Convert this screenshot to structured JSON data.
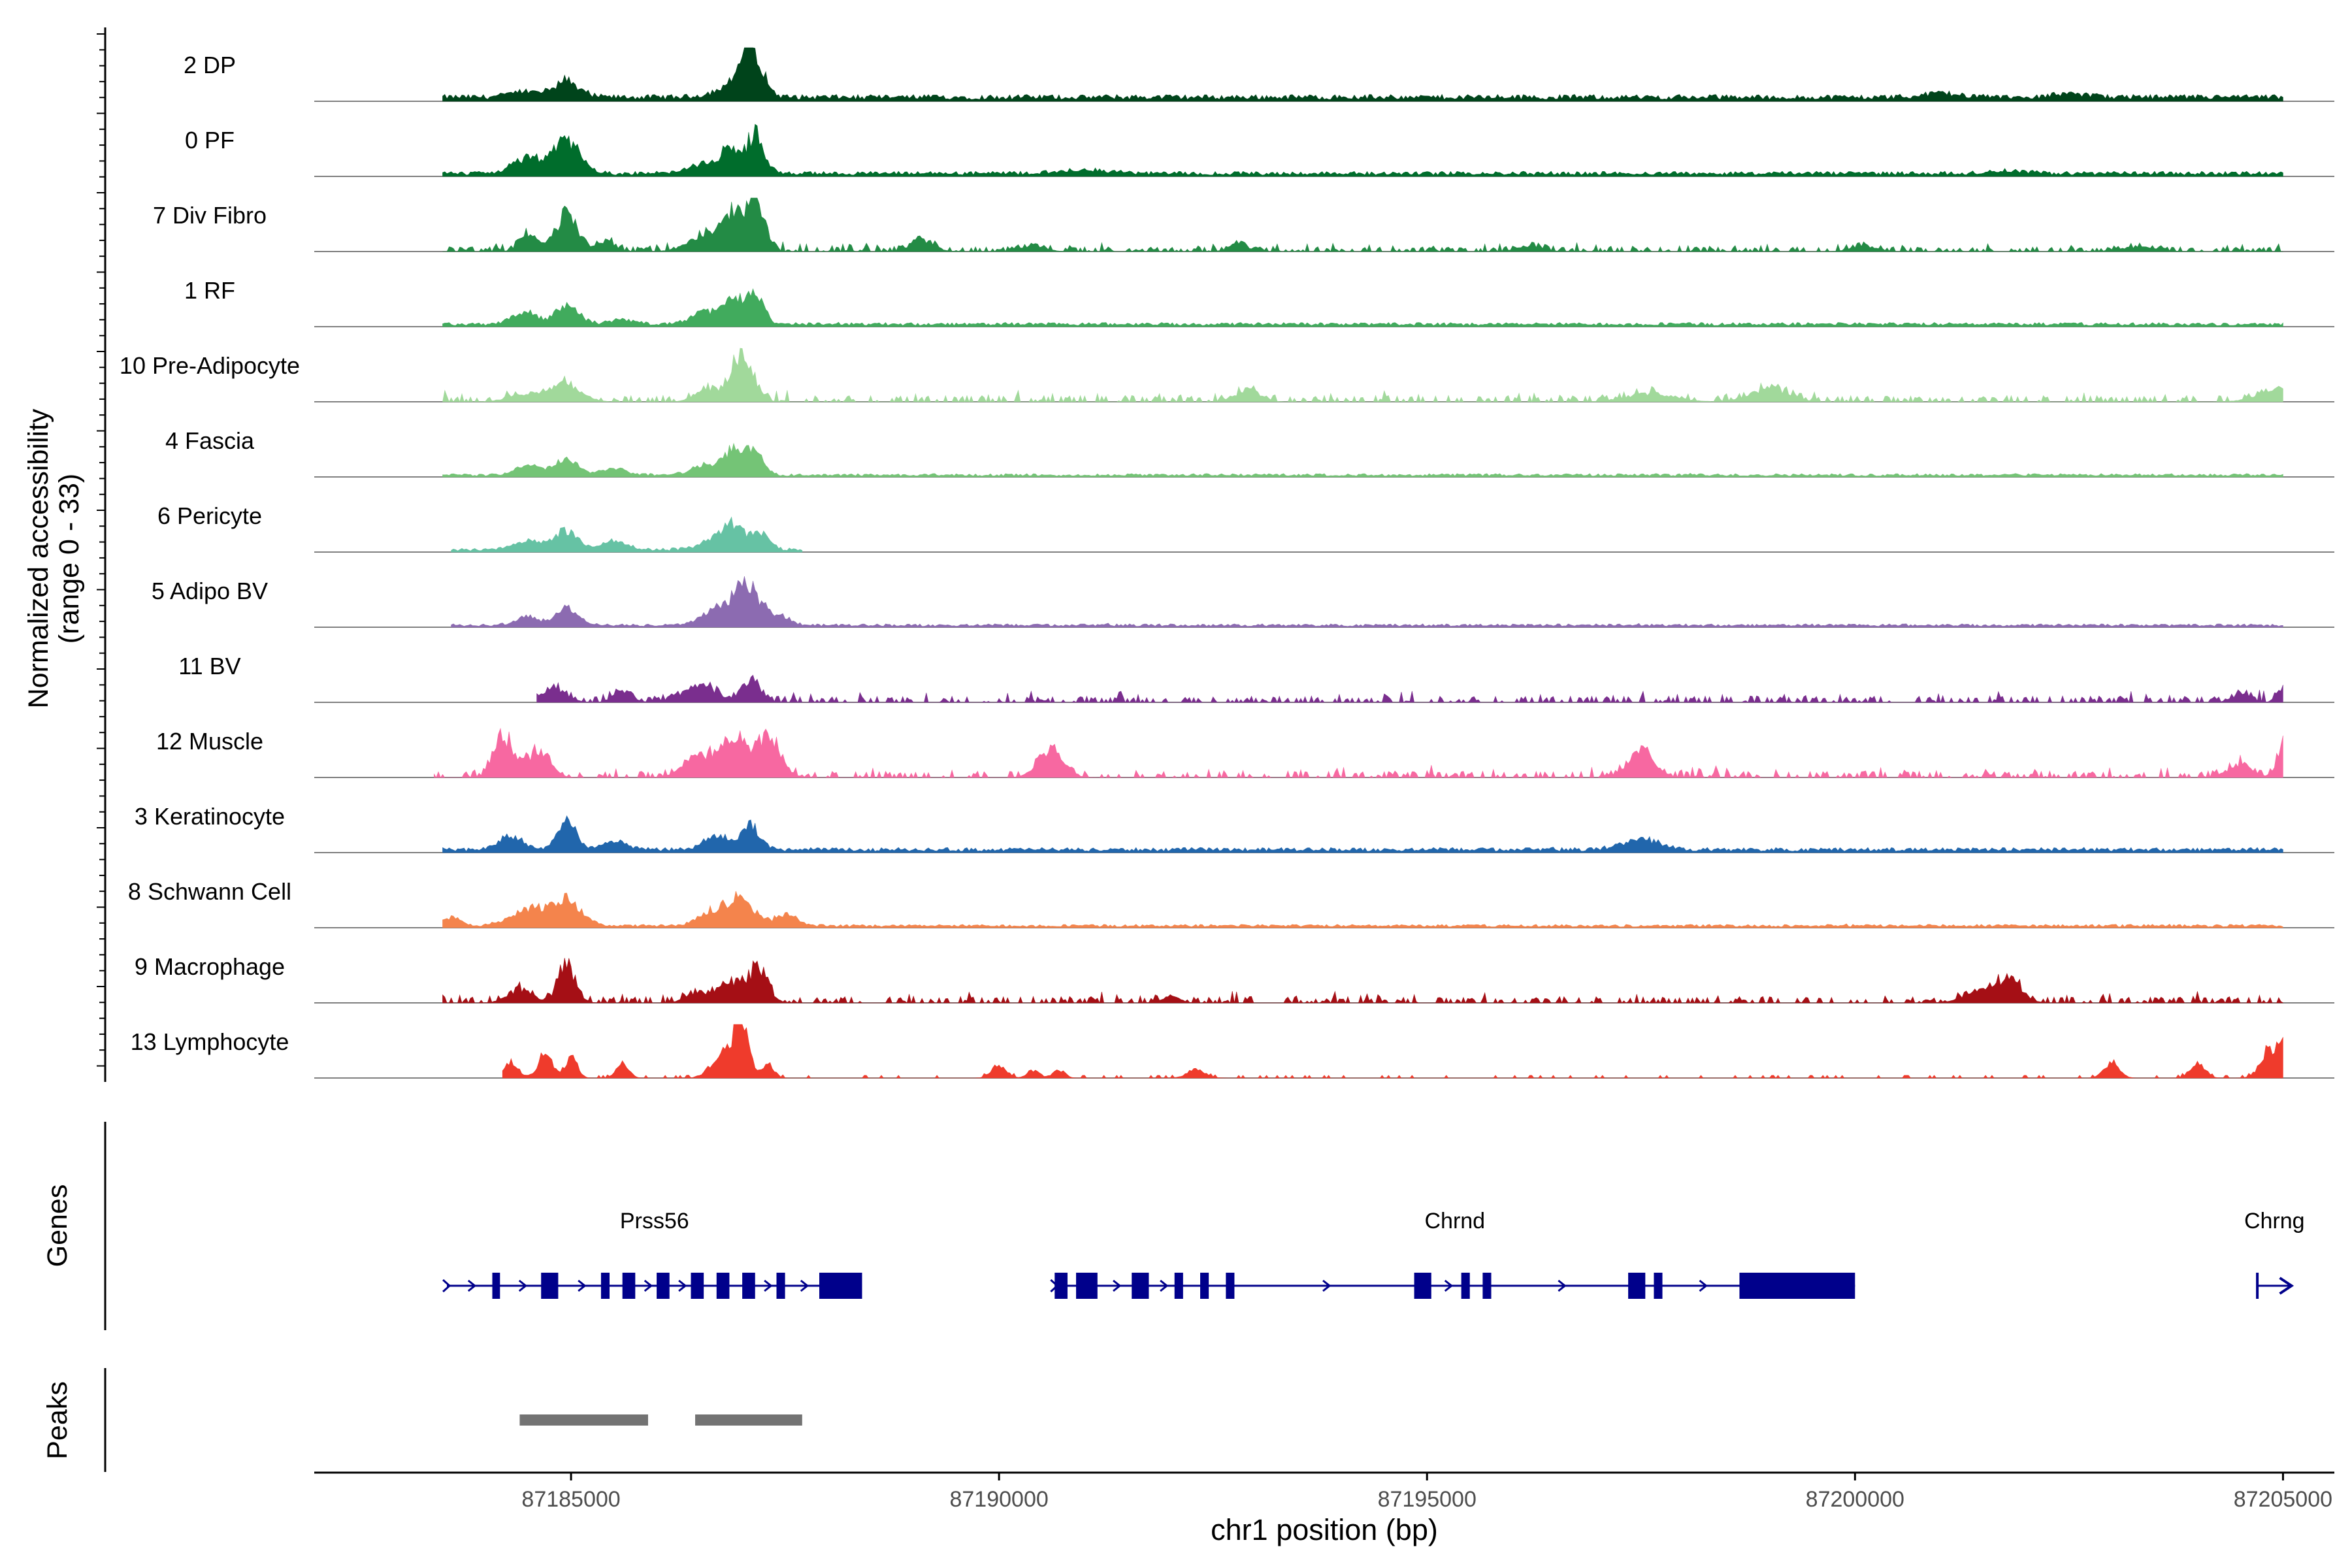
{
  "chart_data": {
    "type": "area",
    "genomic_region": {
      "chromosome": "chr1",
      "start": 87182000,
      "end": 87205600
    },
    "coverage_panel": {
      "ylabel": "Normalized accessibility",
      "ylabel2": "(range 0 - 33)",
      "ylim": [
        0,
        33
      ],
      "tracks": [
        {
          "name": "2 DP",
          "color": "#00441b",
          "start": 87183500,
          "end": 87205000,
          "base": 0.08,
          "noise": 0.2,
          "peaks": [
            [
              87184450,
              0.1,
              250
            ],
            [
              87184950,
              0.3,
              220
            ],
            [
              87186800,
              0.15,
              250
            ],
            [
              87187100,
              0.9,
              180
            ],
            [
              87201000,
              0.07,
              300
            ],
            [
              87202500,
              0.06,
              300
            ]
          ]
        },
        {
          "name": "0 PF",
          "color": "#006d2c",
          "start": 87183500,
          "end": 87205000,
          "base": 0.06,
          "noise": 0.2,
          "peaks": [
            [
              87184500,
              0.28,
              250
            ],
            [
              87184950,
              0.6,
              220
            ],
            [
              87186600,
              0.18,
              300
            ],
            [
              87186850,
              0.42,
              120
            ],
            [
              87187150,
              0.75,
              150
            ],
            [
              87191000,
              0.06,
              400
            ],
            [
              87201800,
              0.05,
              300
            ]
          ]
        },
        {
          "name": "7 Div Fibro",
          "color": "#238b45",
          "start": 87183500,
          "end": 87205000,
          "base": 0.03,
          "noise": 0.5,
          "segments": true,
          "peaks": [
            [
              87184500,
              0.3,
              150
            ],
            [
              87184950,
              0.7,
              180
            ],
            [
              87185400,
              0.2,
              150
            ],
            [
              87186600,
              0.3,
              300
            ],
            [
              87186900,
              0.6,
              150
            ],
            [
              87187150,
              0.95,
              150
            ],
            [
              87189100,
              0.2,
              200
            ],
            [
              87190400,
              0.1,
              200
            ],
            [
              87192800,
              0.14,
              150
            ],
            [
              87196200,
              0.1,
              200
            ],
            [
              87200100,
              0.1,
              200
            ],
            [
              87203300,
              0.08,
              300
            ]
          ]
        },
        {
          "name": "1 RF",
          "color": "#41ab5d",
          "start": 87183500,
          "end": 87205000,
          "base": 0.05,
          "noise": 0.3,
          "peaks": [
            [
              87184450,
              0.22,
              200
            ],
            [
              87184950,
              0.35,
              200
            ],
            [
              87185600,
              0.1,
              200
            ],
            [
              87186600,
              0.25,
              250
            ],
            [
              87186900,
              0.45,
              140
            ],
            [
              87187150,
              0.55,
              140
            ]
          ]
        },
        {
          "name": "10 Pre-Adipocyte",
          "color": "#a1d99b",
          "start": 87183500,
          "end": 87205000,
          "base": 0.04,
          "noise": 0.9,
          "segments": true,
          "peaks": [
            [
              87184500,
              0.15,
              300
            ],
            [
              87184950,
              0.3,
              250
            ],
            [
              87186600,
              0.25,
              200
            ],
            [
              87187000,
              0.95,
              180
            ],
            [
              87192900,
              0.22,
              200
            ],
            [
              87197600,
              0.15,
              400
            ],
            [
              87199000,
              0.25,
              300
            ],
            [
              87204900,
              0.22,
              300
            ]
          ]
        },
        {
          "name": "4 Fascia",
          "color": "#74c476",
          "start": 87183500,
          "end": 87205000,
          "base": 0.04,
          "noise": 0.3,
          "peaks": [
            [
              87184500,
              0.18,
              200
            ],
            [
              87184950,
              0.3,
              200
            ],
            [
              87185500,
              0.12,
              200
            ],
            [
              87186600,
              0.2,
              250
            ],
            [
              87186900,
              0.45,
              140
            ],
            [
              87187150,
              0.5,
              140
            ]
          ]
        },
        {
          "name": "6 Pericyte",
          "color": "#66c2a4",
          "start": 87183600,
          "end": 87187700,
          "base": 0.05,
          "noise": 0.3,
          "peaks": [
            [
              87184500,
              0.15,
              250
            ],
            [
              87184950,
              0.35,
              180
            ],
            [
              87185500,
              0.15,
              200
            ],
            [
              87186700,
              0.2,
              250
            ],
            [
              87186900,
              0.35,
              150
            ],
            [
              87187200,
              0.35,
              150
            ]
          ]
        },
        {
          "name": "5 Adipo BV",
          "color": "#8c6bb1",
          "start": 87183600,
          "end": 87205000,
          "base": 0.04,
          "noise": 0.4,
          "peaks": [
            [
              87184500,
              0.15,
              200
            ],
            [
              87184950,
              0.3,
              180
            ],
            [
              87186700,
              0.3,
              250
            ],
            [
              87187050,
              0.7,
              200
            ],
            [
              87187400,
              0.2,
              200
            ]
          ]
        },
        {
          "name": "11 BV",
          "color": "#7a2e8e",
          "start": 87184600,
          "end": 87205000,
          "base": 0.04,
          "noise": 0.8,
          "segments": true,
          "peaks": [
            [
              87184800,
              0.25,
              200
            ],
            [
              87185600,
              0.22,
              150
            ],
            [
              87186500,
              0.3,
              300
            ],
            [
              87187100,
              0.4,
              150
            ],
            [
              87204500,
              0.15,
              150
            ],
            [
              87205000,
              0.25,
              100
            ]
          ]
        },
        {
          "name": "12 Muscle",
          "color": "#f768a1",
          "start": 87183400,
          "end": 87205000,
          "base": 0.04,
          "noise": 1.0,
          "segments": true,
          "peaks": [
            [
              87184200,
              0.8,
              150
            ],
            [
              87184600,
              0.45,
              200
            ],
            [
              87186500,
              0.4,
              250
            ],
            [
              87186900,
              0.7,
              200
            ],
            [
              87187300,
              0.8,
              200
            ],
            [
              87190600,
              0.55,
              200
            ],
            [
              87197500,
              0.55,
              200
            ],
            [
              87204500,
              0.25,
              200
            ],
            [
              87205000,
              0.6,
              100
            ]
          ]
        },
        {
          "name": "3 Keratinocyte",
          "color": "#2166ac",
          "start": 87183500,
          "end": 87205000,
          "base": 0.06,
          "noise": 0.3,
          "peaks": [
            [
              87184300,
              0.25,
              200
            ],
            [
              87184950,
              0.55,
              150
            ],
            [
              87185500,
              0.15,
              200
            ],
            [
              87186700,
              0.25,
              200
            ],
            [
              87187100,
              0.45,
              150
            ],
            [
              87197500,
              0.2,
              300
            ]
          ]
        },
        {
          "name": "8 Schwann Cell",
          "color": "#f4844c",
          "start": 87183500,
          "end": 87205000,
          "base": 0.04,
          "noise": 0.7,
          "peaks": [
            [
              87183600,
              0.15,
              150
            ],
            [
              87184500,
              0.3,
              300
            ],
            [
              87184950,
              0.45,
              250
            ],
            [
              87186700,
              0.3,
              250
            ],
            [
              87187000,
              0.45,
              200
            ],
            [
              87187500,
              0.2,
              200
            ]
          ]
        },
        {
          "name": "9 Macrophage",
          "color": "#a50f15",
          "start": 87183500,
          "end": 87205000,
          "base": 0.04,
          "noise": 0.8,
          "segments": true,
          "peaks": [
            [
              87184400,
              0.25,
              200
            ],
            [
              87184950,
              0.65,
              150
            ],
            [
              87186500,
              0.2,
              200
            ],
            [
              87186900,
              0.4,
              200
            ],
            [
              87187200,
              0.6,
              150
            ],
            [
              87192000,
              0.12,
              150
            ],
            [
              87201500,
              0.2,
              300
            ],
            [
              87201800,
              0.4,
              200
            ]
          ]
        },
        {
          "name": "13 Lymphocyte",
          "color": "#ef3b2c",
          "start": 87184200,
          "end": 87205000,
          "base": 0.0,
          "noise": 0.0,
          "segments": true,
          "peaks": [
            [
              87184300,
              0.3,
              120
            ],
            [
              87184700,
              0.45,
              120
            ],
            [
              87185000,
              0.4,
              100
            ],
            [
              87185600,
              0.3,
              100
            ],
            [
              87186800,
              0.5,
              200
            ],
            [
              87187000,
              0.95,
              120
            ],
            [
              87187300,
              0.25,
              100
            ],
            [
              87190000,
              0.25,
              120
            ],
            [
              87190400,
              0.15,
              100
            ],
            [
              87190700,
              0.15,
              100
            ],
            [
              87192300,
              0.15,
              150
            ],
            [
              87203000,
              0.3,
              120
            ],
            [
              87204000,
              0.3,
              120
            ],
            [
              87204850,
              0.55,
              150
            ],
            [
              87205000,
              0.5,
              80
            ]
          ]
        }
      ]
    },
    "genes_panel": {
      "ylabel": "Genes",
      "genes": [
        {
          "name": "Prss56",
          "start": 87183550,
          "end": 87188400,
          "strand": "+",
          "exons": [
            [
              87184080,
              87184170
            ],
            [
              87184650,
              87184850
            ],
            [
              87185350,
              87185450
            ],
            [
              87185600,
              87185750
            ],
            [
              87186000,
              87186150
            ],
            [
              87186400,
              87186550
            ],
            [
              87186700,
              87186850
            ],
            [
              87187000,
              87187150
            ],
            [
              87187400,
              87187500
            ],
            [
              87187900,
              87188400
            ]
          ]
        },
        {
          "name": "Chrnd",
          "start": 87190650,
          "end": 87200000,
          "strand": "+",
          "exons": [
            [
              87190650,
              87190800
            ],
            [
              87190900,
              87191150
            ],
            [
              87191550,
              87191750
            ],
            [
              87192050,
              87192150
            ],
            [
              87192350,
              87192450
            ],
            [
              87192650,
              87192750
            ],
            [
              87194850,
              87195050
            ],
            [
              87195400,
              87195500
            ],
            [
              87195650,
              87195750
            ],
            [
              87197350,
              87197550
            ],
            [
              87197650,
              87197750
            ],
            [
              87198650,
              87200000
            ]
          ]
        },
        {
          "name": "Chrng",
          "start": 87204700,
          "end": 87205100,
          "strand": "+",
          "exons": []
        }
      ]
    },
    "peaks_panel": {
      "ylabel": "Peaks",
      "peaks": [
        [
          87184400,
          87185900
        ],
        [
          87186450,
          87187700
        ]
      ]
    },
    "x_axis": {
      "label": "chr1 position (bp)",
      "ticks": [
        87185000,
        87190000,
        87195000,
        87200000,
        87205000
      ],
      "tick_labels": [
        "87185000",
        "87190000",
        "87195000",
        "87200000",
        "87205000"
      ],
      "xlim": [
        87182000,
        87205600
      ]
    }
  }
}
